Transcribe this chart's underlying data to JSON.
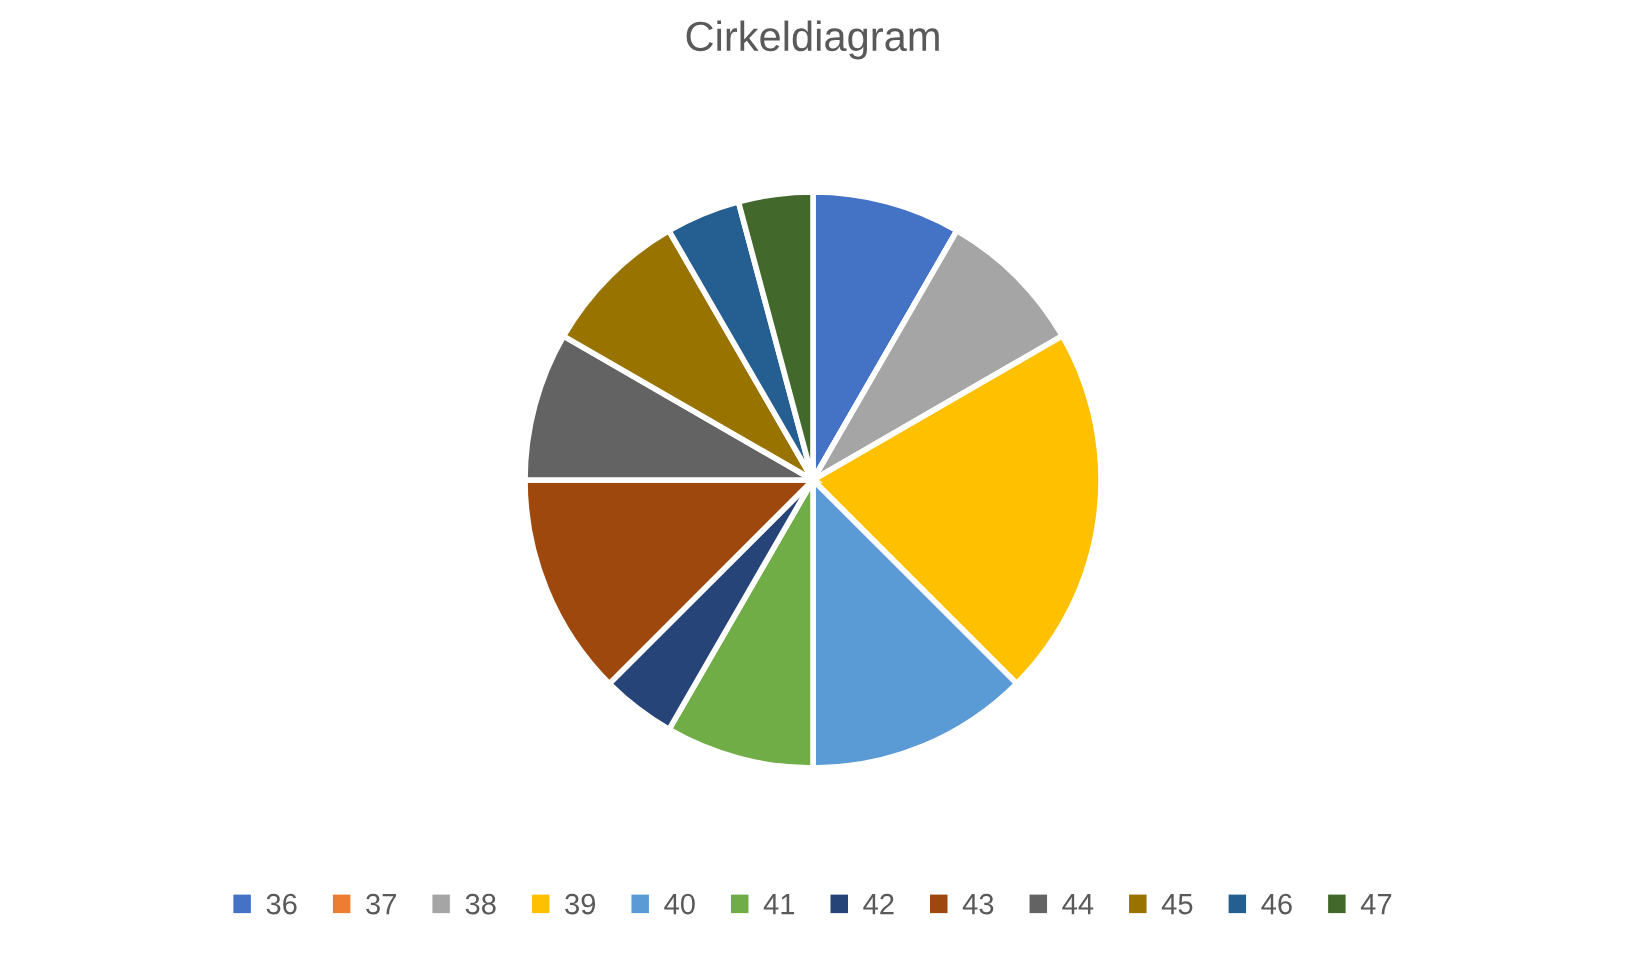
{
  "chart_data": {
    "type": "pie",
    "title": "Cirkeldiagram",
    "categories": [
      "36",
      "37",
      "38",
      "39",
      "40",
      "41",
      "42",
      "43",
      "44",
      "45",
      "46",
      "47"
    ],
    "values": [
      8.33,
      0,
      8.33,
      20.84,
      12.5,
      8.33,
      4.17,
      12.5,
      8.33,
      8.33,
      4.17,
      4.17
    ],
    "colors": [
      "#4472c4",
      "#ed7d31",
      "#a5a5a5",
      "#ffc000",
      "#5b9bd5",
      "#70ad47",
      "#264478",
      "#9e480e",
      "#636363",
      "#997300",
      "#255e91",
      "#43682b"
    ],
    "legend": "bottom"
  }
}
